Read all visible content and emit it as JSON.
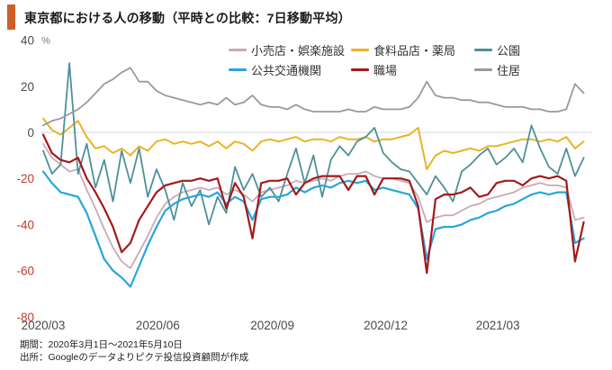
{
  "header": {
    "title": "東京都における人の移動（平時との比較：7日移動平均）"
  },
  "footer": {
    "line1": "期間：2020年3月1日～2021年5月10日",
    "line2": "出所：Googleのデータよりピクテ投信投資顧問が作成"
  },
  "colors": {
    "title_bar": "#cf5f2a",
    "axis_text": "#4a4a4a",
    "negative_tick": "#c2392a",
    "zero_line": "#d9d9d9",
    "unit_text": "#777777"
  },
  "chart_data": {
    "type": "line",
    "title": "東京都における人の移動（平時との比較：7日移動平均）",
    "unit": "%",
    "ylim": [
      -80,
      40
    ],
    "yticks": [
      40,
      20,
      0,
      -20,
      -40,
      -60,
      -80
    ],
    "xticks": [
      {
        "label": "2020/03",
        "day": 0
      },
      {
        "label": "2020/06",
        "day": 92
      },
      {
        "label": "2020/09",
        "day": 184
      },
      {
        "label": "2020/12",
        "day": 275
      },
      {
        "label": "2021/03",
        "day": 365
      }
    ],
    "x_start": "2020-03-01",
    "x_end": "2021-05-10",
    "x_step_days": 7,
    "total_days": 435,
    "grid": "zero-line-only",
    "legend_position": "top",
    "series": [
      {
        "key": "retail",
        "name": "小売店・娯楽施設",
        "color": "#c9aab8",
        "width": 1.8,
        "values": [
          -5,
          -11,
          -14,
          -17,
          -16,
          -25,
          -33,
          -42,
          -50,
          -56,
          -59,
          -52,
          -45,
          -37,
          -31,
          -28,
          -26,
          -25,
          -24,
          -25,
          -24,
          -27,
          -25,
          -27,
          -30,
          -26,
          -25,
          -24,
          -23,
          -21,
          -22,
          -21,
          -20,
          -21,
          -19,
          -18,
          -18,
          -17,
          -19,
          -20,
          -20,
          -21,
          -22,
          -28,
          -39,
          -37,
          -36,
          -36,
          -34,
          -32,
          -31,
          -29,
          -28,
          -27,
          -26,
          -24,
          -23,
          -22,
          -23,
          -23,
          -24,
          -38,
          -37
        ]
      },
      {
        "key": "grocery",
        "name": "食料品店・薬局",
        "color": "#e9b424",
        "width": 2,
        "values": [
          6,
          1,
          -1,
          2,
          5,
          -2,
          -7,
          -6,
          -9,
          -7,
          -10,
          -6,
          -8,
          -4,
          -3,
          -5,
          -4,
          -5,
          -4,
          -6,
          -4,
          -7,
          -4,
          -5,
          -8,
          -4,
          -3,
          -4,
          -3,
          -2,
          -4,
          -3,
          -3,
          -4,
          -2,
          -3,
          -3,
          -2,
          -4,
          -3,
          -3,
          -2,
          -1,
          2,
          -16,
          -10,
          -8,
          -9,
          -8,
          -7,
          -8,
          -6,
          -6,
          -5,
          -4,
          -3,
          -3,
          -4,
          -3,
          -4,
          -2,
          -7,
          -4
        ]
      },
      {
        "key": "parks",
        "name": "公園",
        "color": "#4f9098",
        "width": 1.8,
        "values": [
          -8,
          -18,
          -14,
          30,
          -18,
          -5,
          -24,
          -12,
          -30,
          -8,
          -22,
          -7,
          -28,
          -16,
          -25,
          -38,
          -22,
          -32,
          -25,
          -40,
          -28,
          -35,
          -15,
          -25,
          -18,
          -28,
          -24,
          -30,
          -18,
          -7,
          -22,
          -10,
          -28,
          -12,
          -6,
          -10,
          -4,
          -2,
          2,
          -9,
          -13,
          -16,
          -17,
          -22,
          -27,
          -19,
          -24,
          -30,
          -17,
          -14,
          -10,
          -7,
          -14,
          -11,
          -7,
          -13,
          3,
          -7,
          -15,
          -18,
          -7,
          -19,
          -11
        ]
      },
      {
        "key": "transit",
        "name": "公共交通機関",
        "color": "#27a6dd",
        "width": 2.2,
        "values": [
          -17,
          -22,
          -26,
          -27,
          -28,
          -35,
          -45,
          -55,
          -60,
          -63,
          -67,
          -58,
          -49,
          -41,
          -34,
          -31,
          -29,
          -28,
          -27,
          -28,
          -26,
          -31,
          -28,
          -30,
          -38,
          -29,
          -28,
          -28,
          -27,
          -24,
          -26,
          -24,
          -23,
          -24,
          -22,
          -21,
          -22,
          -21,
          -25,
          -24,
          -25,
          -26,
          -27,
          -33,
          -55,
          -42,
          -41,
          -41,
          -40,
          -38,
          -37,
          -35,
          -34,
          -32,
          -31,
          -29,
          -27,
          -26,
          -27,
          -26,
          -26,
          -48,
          -46
        ]
      },
      {
        "key": "workplaces",
        "name": "職場",
        "color": "#a31a1a",
        "width": 2.2,
        "values": [
          -1,
          -9,
          -12,
          -13,
          -11,
          -20,
          -26,
          -33,
          -41,
          -52,
          -48,
          -38,
          -32,
          -26,
          -23,
          -22,
          -21,
          -21,
          -20,
          -21,
          -20,
          -33,
          -22,
          -28,
          -46,
          -22,
          -21,
          -21,
          -20,
          -27,
          -22,
          -20,
          -19,
          -19,
          -19,
          -25,
          -19,
          -19,
          -27,
          -20,
          -20,
          -20,
          -21,
          -32,
          -61,
          -29,
          -27,
          -27,
          -26,
          -24,
          -28,
          -27,
          -22,
          -21,
          -21,
          -23,
          -20,
          -19,
          -20,
          -19,
          -21,
          -56,
          -39
        ]
      },
      {
        "key": "residential",
        "name": "住居",
        "color": "#9a9a9a",
        "width": 1.8,
        "values": [
          3,
          5,
          6,
          8,
          10,
          13,
          17,
          21,
          23,
          26,
          28,
          22,
          22,
          18,
          16,
          15,
          14,
          13,
          12,
          13,
          12,
          15,
          12,
          13,
          16,
          12,
          11,
          11,
          10,
          12,
          10,
          9,
          9,
          9,
          9,
          10,
          9,
          9,
          11,
          10,
          10,
          10,
          11,
          15,
          22,
          16,
          15,
          15,
          14,
          14,
          13,
          13,
          12,
          11,
          11,
          11,
          10,
          10,
          9,
          9,
          10,
          21,
          17
        ]
      }
    ]
  }
}
